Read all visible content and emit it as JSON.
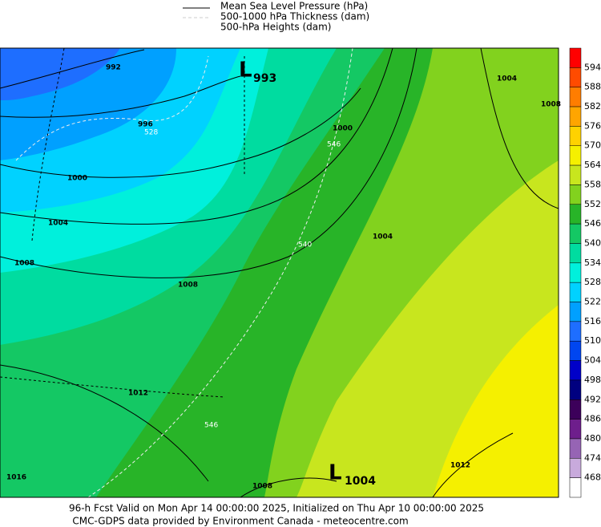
{
  "legend": {
    "items": [
      "Mean Sea Level Pressure (hPa)",
      "500-1000 hPa Thickness (dam)",
      "500-hPa Heights (dam)"
    ]
  },
  "lows": [
    {
      "symbol": "L",
      "value": "993"
    },
    {
      "symbol": "L",
      "value": "1004"
    }
  ],
  "isobar_labels": [
    "992",
    "996",
    "1000",
    "1004",
    "1008",
    "1008",
    "1012",
    "1016",
    "1000",
    "1004",
    "1004",
    "1008",
    "1012",
    "1008"
  ],
  "thickness_labels": [
    "528",
    "546",
    "546",
    "540"
  ],
  "colorbar": {
    "labels": [
      "594",
      "588",
      "582",
      "576",
      "570",
      "564",
      "558",
      "552",
      "546",
      "540",
      "534",
      "528",
      "522",
      "516",
      "510",
      "504",
      "498",
      "492",
      "486",
      "480",
      "474",
      "468"
    ],
    "colors": [
      "#ff0000",
      "#ff4b00",
      "#ff7d00",
      "#ffa500",
      "#ffd200",
      "#f5f000",
      "#c8e61e",
      "#82d21e",
      "#28b428",
      "#14c864",
      "#00dca0",
      "#00f0dc",
      "#00d2ff",
      "#00a0ff",
      "#1e6eff",
      "#0046f0",
      "#0000c8",
      "#000080",
      "#3c005a",
      "#6e1e8c",
      "#9664b4",
      "#c8aadc",
      "#ffffff"
    ]
  },
  "footer": [
    "96-h Fcst Valid on Mon Apr 14 00:00:00 2025, Initialized on Thu Apr 10 00:00:00 2025",
    "CMC-GDPS data provided by Environment Canada - meteocentre.com"
  ]
}
